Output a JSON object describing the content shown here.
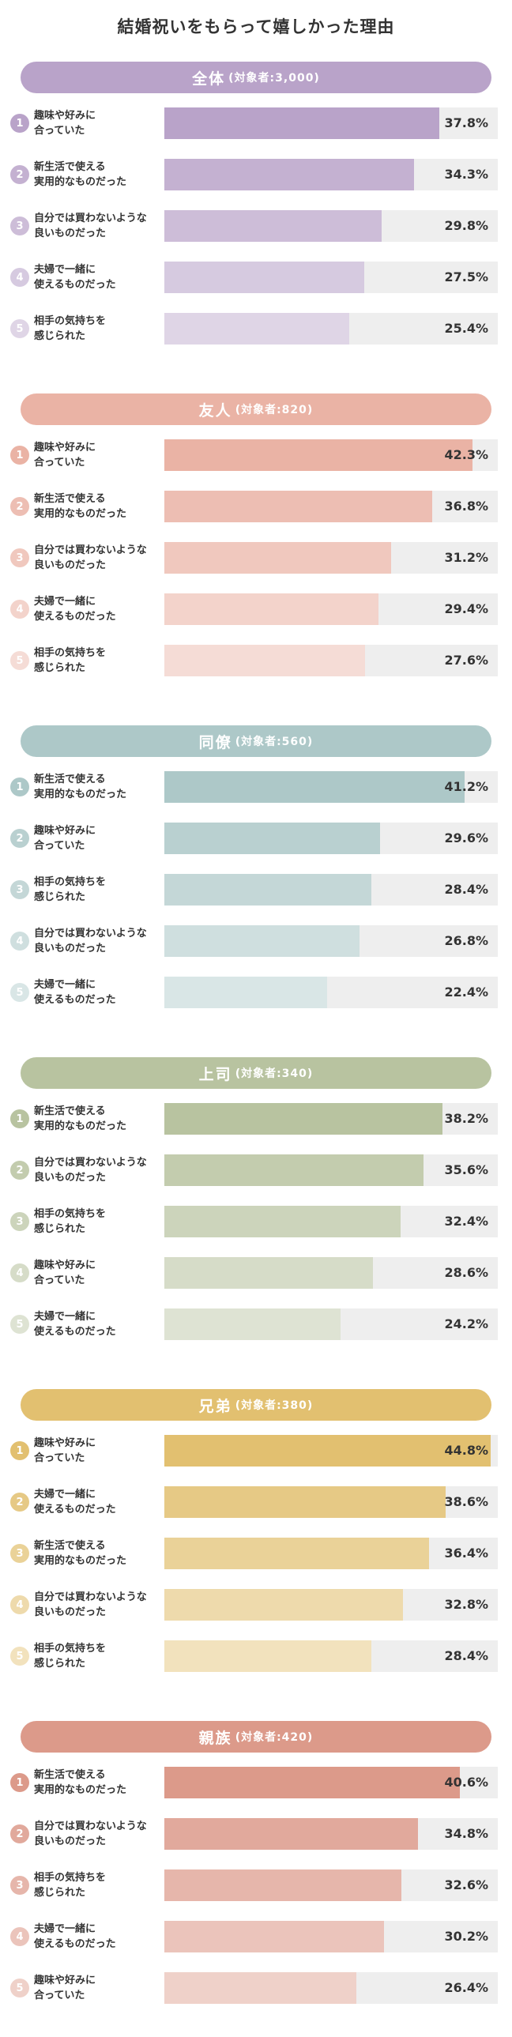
{
  "title": "結婚祝いをもらって嬉しかった理由",
  "chart_data": [
    {
      "type": "bar",
      "name": "全体",
      "count_label": "(対象者:3,000)",
      "color": "#b9a3c9",
      "categories": [
        "趣味や好みに\n合っていた",
        "新生活で使える\n実用的なものだった",
        "自分では買わないような\n良いものだった",
        "夫婦で一緒に\n使えるものだった",
        "相手の気持ちを\n感じられた"
      ],
      "values": [
        37.8,
        34.3,
        29.8,
        27.5,
        25.4
      ],
      "value_labels": [
        "37.8%",
        "34.3%",
        "29.8%",
        "27.5%",
        "25.4%"
      ],
      "ranks": [
        "1",
        "2",
        "3",
        "4",
        "5"
      ]
    },
    {
      "type": "bar",
      "name": "友人",
      "count_label": "(対象者:820)",
      "color": "#eab3a5",
      "categories": [
        "趣味や好みに\n合っていた",
        "新生活で使える\n実用的なものだった",
        "自分では買わないような\n良いものだった",
        "夫婦で一緒に\n使えるものだった",
        "相手の気持ちを\n感じられた"
      ],
      "values": [
        42.3,
        36.8,
        31.2,
        29.4,
        27.6
      ],
      "value_labels": [
        "42.3%",
        "36.8%",
        "31.2%",
        "29.4%",
        "27.6%"
      ],
      "ranks": [
        "1",
        "2",
        "3",
        "4",
        "5"
      ]
    },
    {
      "type": "bar",
      "name": "同僚",
      "count_label": "(対象者:560)",
      "color": "#adc8c8",
      "categories": [
        "新生活で使える\n実用的なものだった",
        "趣味や好みに\n合っていた",
        "相手の気持ちを\n感じられた",
        "自分では買わないような\n良いものだった",
        "夫婦で一緒に\n使えるものだった"
      ],
      "values": [
        41.2,
        29.6,
        28.4,
        26.8,
        22.4
      ],
      "value_labels": [
        "41.2%",
        "29.6%",
        "28.4%",
        "26.8%",
        "22.4%"
      ],
      "ranks": [
        "1",
        "2",
        "3",
        "4",
        "5"
      ]
    },
    {
      "type": "bar",
      "name": "上司",
      "count_label": "(対象者:340)",
      "color": "#b8c3a0",
      "categories": [
        "新生活で使える\n実用的なものだった",
        "自分では買わないような\n良いものだった",
        "相手の気持ちを\n感じられた",
        "趣味や好みに\n合っていた",
        "夫婦で一緒に\n使えるものだった"
      ],
      "values": [
        38.2,
        35.6,
        32.4,
        28.6,
        24.2
      ],
      "value_labels": [
        "38.2%",
        "35.6%",
        "32.4%",
        "28.6%",
        "24.2%"
      ],
      "ranks": [
        "1",
        "2",
        "3",
        "4",
        "5"
      ]
    },
    {
      "type": "bar",
      "name": "兄弟",
      "count_label": "(対象者:380)",
      "color": "#e2c070",
      "categories": [
        "趣味や好みに\n合っていた",
        "夫婦で一緒に\n使えるものだった",
        "新生活で使える\n実用的なものだった",
        "自分では買わないような\n良いものだった",
        "相手の気持ちを\n感じられた"
      ],
      "values": [
        44.8,
        38.6,
        36.4,
        32.8,
        28.4
      ],
      "value_labels": [
        "44.8%",
        "38.6%",
        "36.4%",
        "32.8%",
        "28.4%"
      ],
      "ranks": [
        "1",
        "2",
        "3",
        "4",
        "5"
      ]
    },
    {
      "type": "bar",
      "name": "親族",
      "count_label": "(対象者:420)",
      "color": "#dc9a8a",
      "categories": [
        "新生活で使える\n実用的なものだった",
        "自分では買わないような\n良いものだった",
        "相手の気持ちを\n感じられた",
        "夫婦で一緒に\n使えるものだった",
        "趣味や好みに\n合っていた"
      ],
      "values": [
        40.6,
        34.8,
        32.6,
        30.2,
        26.4
      ],
      "value_labels": [
        "40.6%",
        "34.8%",
        "32.6%",
        "30.2%",
        "26.4%"
      ],
      "ranks": [
        "1",
        "2",
        "3",
        "4",
        "5"
      ]
    }
  ]
}
